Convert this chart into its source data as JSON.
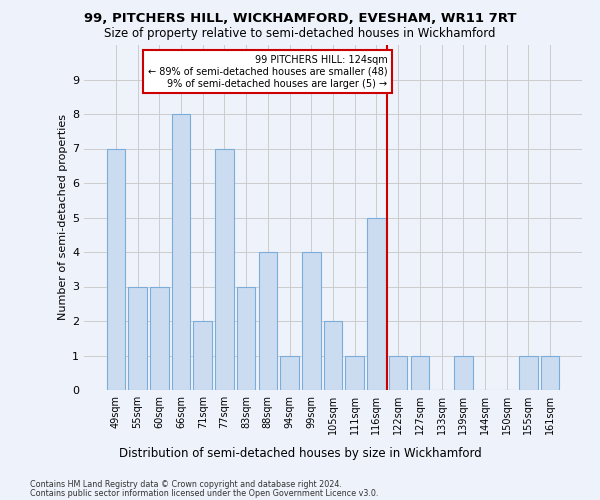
{
  "title": "99, PITCHERS HILL, WICKHAMFORD, EVESHAM, WR11 7RT",
  "subtitle": "Size of property relative to semi-detached houses in Wickhamford",
  "xlabel_bottom": "Distribution of semi-detached houses by size in Wickhamford",
  "ylabel": "Number of semi-detached properties",
  "categories": [
    "49sqm",
    "55sqm",
    "60sqm",
    "66sqm",
    "71sqm",
    "77sqm",
    "83sqm",
    "88sqm",
    "94sqm",
    "99sqm",
    "105sqm",
    "111sqm",
    "116sqm",
    "122sqm",
    "127sqm",
    "133sqm",
    "139sqm",
    "144sqm",
    "150sqm",
    "155sqm",
    "161sqm"
  ],
  "values": [
    7,
    3,
    3,
    8,
    2,
    7,
    3,
    4,
    1,
    4,
    2,
    1,
    5,
    1,
    1,
    0,
    1,
    0,
    0,
    1,
    1
  ],
  "bar_color": "#ccdcf0",
  "bar_edge_color": "#7aadda",
  "grid_color": "#cccccc",
  "vline_index": 12,
  "vline_color": "#cc0000",
  "box_text_line1": "99 PITCHERS HILL: 124sqm",
  "box_text_line2": "← 89% of semi-detached houses are smaller (48)",
  "box_text_line3": "9% of semi-detached houses are larger (5) →",
  "box_color": "#cc0000",
  "ylim": [
    0,
    10
  ],
  "yticks": [
    0,
    1,
    2,
    3,
    4,
    5,
    6,
    7,
    8,
    9
  ],
  "footer_line1": "Contains HM Land Registry data © Crown copyright and database right 2024.",
  "footer_line2": "Contains public sector information licensed under the Open Government Licence v3.0.",
  "bg_color": "#eef2fb"
}
